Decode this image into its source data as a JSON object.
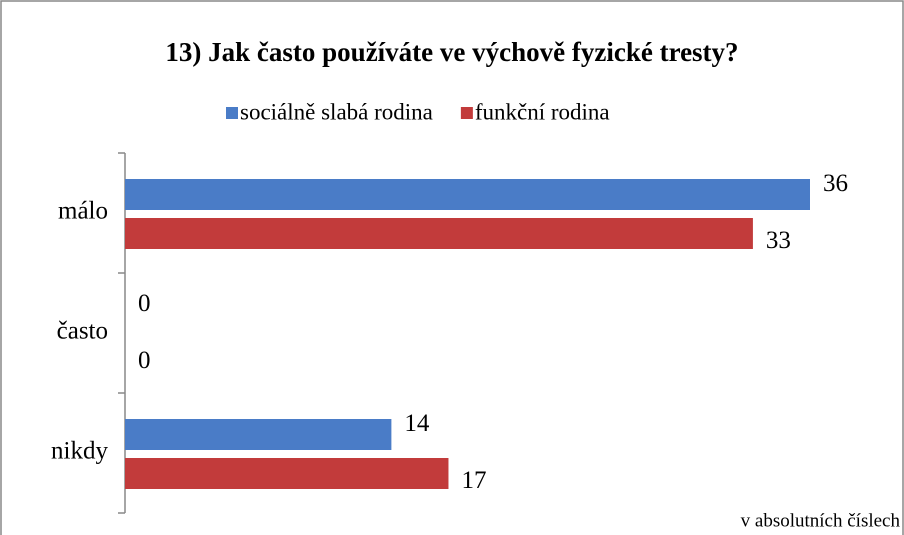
{
  "chart_data": {
    "type": "bar",
    "orientation": "horizontal",
    "title": "13) Jak často používáte ve výchově fyzické tresty?",
    "categories": [
      "málo",
      "často",
      "nikdy"
    ],
    "series": [
      {
        "name": "sociálně slabá rodina",
        "color": "#4a7cc7",
        "values": [
          36,
          0,
          14
        ]
      },
      {
        "name": "funkční rodina",
        "color": "#c23b3b",
        "values": [
          33,
          0,
          17
        ]
      }
    ],
    "annotation": "v absolutních číslech",
    "legend": "top"
  }
}
